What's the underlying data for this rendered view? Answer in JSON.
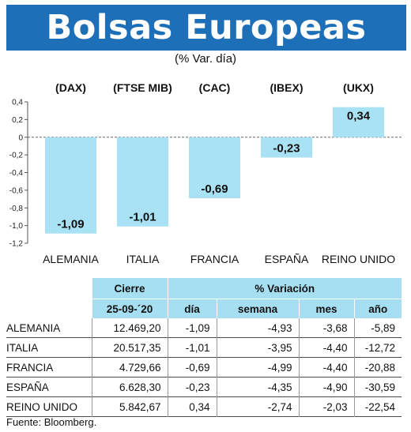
{
  "header": {
    "title": "Bolsas Europeas",
    "subtitle": "(% Var. día)"
  },
  "chart_data": {
    "type": "bar",
    "indices": [
      "(DAX)",
      "(FTSE MIB)",
      "(CAC)",
      "(IBEX)",
      "(UKX)"
    ],
    "categories": [
      "ALEMANIA",
      "ITALIA",
      "FRANCIA",
      "ESPAÑA",
      "REINO UNIDO"
    ],
    "values": [
      -1.09,
      -1.01,
      -0.69,
      -0.23,
      0.34
    ],
    "value_labels": [
      "-1,09",
      "-1,01",
      "-0,69",
      "-0,23",
      "0,34"
    ],
    "ylim": [
      -1.2,
      0.4
    ],
    "yticks": [
      0.4,
      0.2,
      0,
      -0.2,
      -0.4,
      -0.6,
      -0.8,
      -1.0,
      -1.2
    ],
    "ytick_labels": [
      "0,4",
      "0,2",
      "0",
      "-0,2",
      "-0,4",
      "-0,6",
      "-0,8",
      "-1,0",
      "-1,2"
    ],
    "grid": false,
    "bar_color": "#a8e2f4",
    "table": {
      "group_headers": [
        "Cierre",
        "% Variación"
      ],
      "columns": [
        "25-09-´20",
        "día",
        "semana",
        "mes",
        "año"
      ],
      "rows": [
        {
          "country": "ALEMANIA",
          "cierre": "12.469,20",
          "dia": "-1,09",
          "semana": "-4,93",
          "mes": "-3,68",
          "ano": "-5,89"
        },
        {
          "country": "ITALIA",
          "cierre": "20.517,35",
          "dia": "-1,01",
          "semana": "-3,95",
          "mes": "-4,40",
          "ano": "-12,72"
        },
        {
          "country": "FRANCIA",
          "cierre": "4.729,66",
          "dia": "-0,69",
          "semana": "-4,99",
          "mes": "-4,40",
          "ano": "-20,88"
        },
        {
          "country": "ESPAÑA",
          "cierre": "6.628,30",
          "dia": "-0,23",
          "semana": "-4,35",
          "mes": "-4,90",
          "ano": "-30,59"
        },
        {
          "country": "REINO UNIDO",
          "cierre": "5.842,67",
          "dia": "0,34",
          "semana": "-2,74",
          "mes": "-2,03",
          "ano": "-22,54"
        }
      ]
    }
  },
  "footer": {
    "source": "Fuente: Bloomberg."
  }
}
